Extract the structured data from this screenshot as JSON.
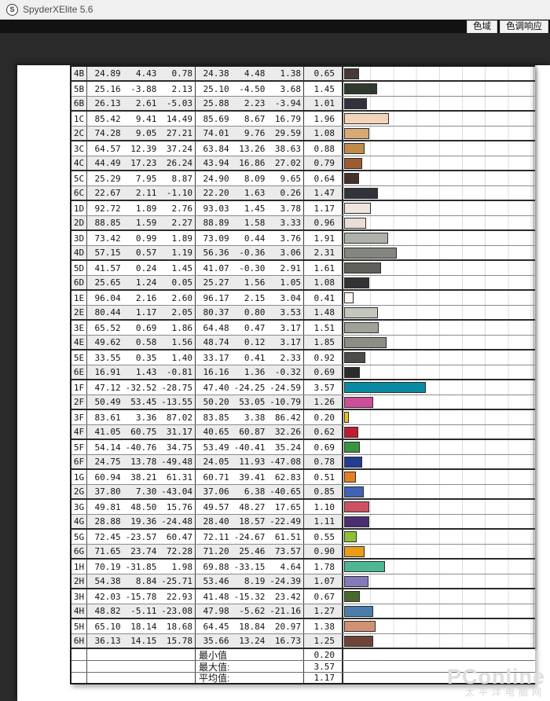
{
  "window": {
    "title": "SpyderXElite 5.6",
    "icon_letter": "S"
  },
  "tabs": [
    {
      "id": "gamut",
      "label": "色域"
    },
    {
      "id": "tone_response",
      "label": "色调响应"
    }
  ],
  "summary": {
    "min_label": "最小值",
    "min_value": "0.20",
    "max_label": "最大值:",
    "max_value": "3.57",
    "avg_label": "平均值:",
    "avg_value": "1.17"
  },
  "watermark": {
    "line1": "PConline",
    "line2": "太平洋电脑网"
  },
  "chart_data": {
    "type": "table",
    "description": "Color accuracy patch table: patch id, target Lab (L,a,b), measured Lab (L,a,b), Delta-E value with horizontal Delta-E bar tinted in patch color",
    "delta_e_axis": {
      "min": 0,
      "max": 8,
      "gridline_step": 1
    },
    "legend_position": "none",
    "rows": [
      {
        "id": "4B",
        "target": [
          "24.89",
          "4.43",
          "0.78"
        ],
        "measured": [
          "24.38",
          "4.48",
          "1.38"
        ],
        "delta_e": "0.65",
        "de": 0.65,
        "color": "#473936",
        "shaded": true
      },
      {
        "id": "5B",
        "target": [
          "25.16",
          "-3.88",
          "2.13"
        ],
        "measured": [
          "25.10",
          "-4.50",
          "3.68"
        ],
        "delta_e": "1.45",
        "de": 1.45,
        "color": "#2e3a2f",
        "shaded": false
      },
      {
        "id": "6B",
        "target": [
          "26.13",
          "2.61",
          "-5.03"
        ],
        "measured": [
          "25.88",
          "2.23",
          "-3.94"
        ],
        "delta_e": "1.01",
        "de": 1.01,
        "color": "#32323e",
        "shaded": true
      },
      {
        "id": "1C",
        "target": [
          "85.42",
          "9.41",
          "14.49"
        ],
        "measured": [
          "85.69",
          "8.67",
          "16.79"
        ],
        "delta_e": "1.96",
        "de": 1.96,
        "color": "#f2d4b6",
        "shaded": false
      },
      {
        "id": "2C",
        "target": [
          "74.28",
          "9.05",
          "27.21"
        ],
        "measured": [
          "74.01",
          "9.76",
          "29.59"
        ],
        "delta_e": "1.08",
        "de": 1.08,
        "color": "#d7a973",
        "shaded": true
      },
      {
        "id": "3C",
        "target": [
          "64.57",
          "12.39",
          "37.24"
        ],
        "measured": [
          "63.84",
          "13.26",
          "38.63"
        ],
        "delta_e": "0.88",
        "de": 0.88,
        "color": "#c08a49",
        "shaded": false
      },
      {
        "id": "4C",
        "target": [
          "44.49",
          "17.23",
          "26.24"
        ],
        "measured": [
          "43.94",
          "16.86",
          "27.02"
        ],
        "delta_e": "0.79",
        "de": 0.79,
        "color": "#9a5c32",
        "shaded": true
      },
      {
        "id": "5C",
        "target": [
          "25.29",
          "7.95",
          "8.87"
        ],
        "measured": [
          "24.90",
          "8.09",
          "9.65"
        ],
        "delta_e": "0.64",
        "de": 0.64,
        "color": "#45302a",
        "shaded": false
      },
      {
        "id": "6C",
        "target": [
          "22.67",
          "2.11",
          "-1.10"
        ],
        "measured": [
          "22.20",
          "1.63",
          "0.26"
        ],
        "delta_e": "1.47",
        "de": 1.47,
        "color": "#32323a",
        "shaded": true
      },
      {
        "id": "1D",
        "target": [
          "92.72",
          "1.89",
          "2.76"
        ],
        "measured": [
          "93.03",
          "1.45",
          "3.78"
        ],
        "delta_e": "1.17",
        "de": 1.17,
        "color": "#f1e6de",
        "shaded": false
      },
      {
        "id": "2D",
        "target": [
          "88.85",
          "1.59",
          "2.27"
        ],
        "measured": [
          "88.89",
          "1.58",
          "3.33"
        ],
        "delta_e": "0.96",
        "de": 0.96,
        "color": "#e8ded6",
        "shaded": true
      },
      {
        "id": "3D",
        "target": [
          "73.42",
          "0.99",
          "1.89"
        ],
        "measured": [
          "73.09",
          "0.44",
          "3.76"
        ],
        "delta_e": "1.91",
        "de": 1.91,
        "color": "#aeb2a8",
        "shaded": false
      },
      {
        "id": "4D",
        "target": [
          "57.15",
          "0.57",
          "1.19"
        ],
        "measured": [
          "56.36",
          "-0.36",
          "3.06"
        ],
        "delta_e": "2.31",
        "de": 2.31,
        "color": "#82867e",
        "shaded": true
      },
      {
        "id": "5D",
        "target": [
          "41.57",
          "0.24",
          "1.45"
        ],
        "measured": [
          "41.07",
          "-0.30",
          "2.91"
        ],
        "delta_e": "1.61",
        "de": 1.61,
        "color": "#60605a",
        "shaded": false
      },
      {
        "id": "6D",
        "target": [
          "25.65",
          "1.24",
          "0.05"
        ],
        "measured": [
          "25.27",
          "1.56",
          "1.05"
        ],
        "delta_e": "1.08",
        "de": 1.08,
        "color": "#333336",
        "shaded": true
      },
      {
        "id": "1E",
        "target": [
          "96.04",
          "2.16",
          "2.60"
        ],
        "measured": [
          "96.17",
          "2.15",
          "3.04"
        ],
        "delta_e": "0.41",
        "de": 0.41,
        "color": "#fbf5ed",
        "shaded": false
      },
      {
        "id": "2E",
        "target": [
          "80.44",
          "1.17",
          "2.05"
        ],
        "measured": [
          "80.37",
          "0.80",
          "3.53"
        ],
        "delta_e": "1.48",
        "de": 1.48,
        "color": "#c4c8bc",
        "shaded": true
      },
      {
        "id": "3E",
        "target": [
          "65.52",
          "0.69",
          "1.86"
        ],
        "measured": [
          "64.48",
          "0.47",
          "3.17"
        ],
        "delta_e": "1.51",
        "de": 1.51,
        "color": "#9fa299",
        "shaded": false
      },
      {
        "id": "4E",
        "target": [
          "49.62",
          "0.58",
          "1.56"
        ],
        "measured": [
          "48.74",
          "0.12",
          "3.17"
        ],
        "delta_e": "1.85",
        "de": 1.85,
        "color": "#8a8e85",
        "shaded": true
      },
      {
        "id": "5E",
        "target": [
          "33.55",
          "0.35",
          "1.40"
        ],
        "measured": [
          "33.17",
          "0.41",
          "2.33"
        ],
        "delta_e": "0.92",
        "de": 0.92,
        "color": "#4b4b47",
        "shaded": false
      },
      {
        "id": "6E",
        "target": [
          "16.91",
          "1.43",
          "-0.81"
        ],
        "measured": [
          "16.16",
          "1.36",
          "-0.32"
        ],
        "delta_e": "0.69",
        "de": 0.69,
        "color": "#2b2b2b",
        "shaded": true
      },
      {
        "id": "1F",
        "target": [
          "47.12",
          "-32.52",
          "-28.75"
        ],
        "measured": [
          "47.40",
          "-24.25",
          "-24.59"
        ],
        "delta_e": "3.57",
        "de": 3.57,
        "color": "#0a89a2",
        "shaded": false
      },
      {
        "id": "2F",
        "target": [
          "50.49",
          "53.45",
          "-13.55"
        ],
        "measured": [
          "50.20",
          "53.05",
          "-10.79"
        ],
        "delta_e": "1.26",
        "de": 1.26,
        "color": "#cc4e99",
        "shaded": true
      },
      {
        "id": "3F",
        "target": [
          "83.61",
          "3.36",
          "87.02"
        ],
        "measured": [
          "83.85",
          "3.38",
          "86.42"
        ],
        "delta_e": "0.20",
        "de": 0.2,
        "color": "#eac51d",
        "shaded": false
      },
      {
        "id": "4F",
        "target": [
          "41.05",
          "60.75",
          "31.17"
        ],
        "measured": [
          "40.65",
          "60.87",
          "32.26"
        ],
        "delta_e": "0.62",
        "de": 0.62,
        "color": "#c01b33",
        "shaded": true
      },
      {
        "id": "5F",
        "target": [
          "54.14",
          "-40.76",
          "34.75"
        ],
        "measured": [
          "53.49",
          "-40.41",
          "35.24"
        ],
        "delta_e": "0.69",
        "de": 0.69,
        "color": "#3b9341",
        "shaded": false
      },
      {
        "id": "6F",
        "target": [
          "24.75",
          "13.78",
          "-49.48"
        ],
        "measured": [
          "24.05",
          "11.93",
          "-47.08"
        ],
        "delta_e": "0.78",
        "de": 0.78,
        "color": "#223c92",
        "shaded": true
      },
      {
        "id": "1G",
        "target": [
          "60.94",
          "38.21",
          "61.31"
        ],
        "measured": [
          "60.71",
          "39.41",
          "62.83"
        ],
        "delta_e": "0.51",
        "de": 0.51,
        "color": "#e77e21",
        "shaded": false
      },
      {
        "id": "2G",
        "target": [
          "37.80",
          "7.30",
          "-43.04"
        ],
        "measured": [
          "37.06",
          "6.38",
          "-40.65"
        ],
        "delta_e": "0.85",
        "de": 0.85,
        "color": "#3f63b5",
        "shaded": true
      },
      {
        "id": "3G",
        "target": [
          "49.81",
          "48.50",
          "15.76"
        ],
        "measured": [
          "49.57",
          "48.27",
          "17.65"
        ],
        "delta_e": "1.10",
        "de": 1.1,
        "color": "#cd5162",
        "shaded": false
      },
      {
        "id": "4G",
        "target": [
          "28.88",
          "19.36",
          "-24.48"
        ],
        "measured": [
          "28.40",
          "18.57",
          "-22.49"
        ],
        "delta_e": "1.11",
        "de": 1.11,
        "color": "#4b2d72",
        "shaded": true
      },
      {
        "id": "5G",
        "target": [
          "72.45",
          "-23.57",
          "60.47"
        ],
        "measured": [
          "72.11",
          "-24.67",
          "61.51"
        ],
        "delta_e": "0.55",
        "de": 0.55,
        "color": "#8fc035",
        "shaded": false
      },
      {
        "id": "6G",
        "target": [
          "71.65",
          "23.74",
          "72.28"
        ],
        "measured": [
          "71.20",
          "25.46",
          "73.57"
        ],
        "delta_e": "0.90",
        "de": 0.9,
        "color": "#eb9d19",
        "shaded": true
      },
      {
        "id": "1H",
        "target": [
          "70.19",
          "-31.85",
          "1.98"
        ],
        "measured": [
          "69.88",
          "-33.15",
          "4.64"
        ],
        "delta_e": "1.78",
        "de": 1.78,
        "color": "#4db795",
        "shaded": false
      },
      {
        "id": "2H",
        "target": [
          "54.38",
          "8.84",
          "-25.71"
        ],
        "measured": [
          "53.46",
          "8.19",
          "-24.39"
        ],
        "delta_e": "1.07",
        "de": 1.07,
        "color": "#837abc",
        "shaded": true
      },
      {
        "id": "3H",
        "target": [
          "42.03",
          "-15.78",
          "22.93"
        ],
        "measured": [
          "41.48",
          "-15.32",
          "23.42"
        ],
        "delta_e": "0.67",
        "de": 0.67,
        "color": "#47682e",
        "shaded": false
      },
      {
        "id": "4H",
        "target": [
          "48.82",
          "-5.11",
          "-23.08"
        ],
        "measured": [
          "47.98",
          "-5.62",
          "-21.16"
        ],
        "delta_e": "1.27",
        "de": 1.27,
        "color": "#4a7dac",
        "shaded": true
      },
      {
        "id": "5H",
        "target": [
          "65.10",
          "18.14",
          "18.68"
        ],
        "measured": [
          "64.45",
          "18.84",
          "20.97"
        ],
        "delta_e": "1.38",
        "de": 1.38,
        "color": "#d09173",
        "shaded": false
      },
      {
        "id": "6H",
        "target": [
          "36.13",
          "14.15",
          "15.78"
        ],
        "measured": [
          "35.66",
          "13.24",
          "16.73"
        ],
        "delta_e": "1.25",
        "de": 1.25,
        "color": "#6e4339",
        "shaded": true
      }
    ]
  }
}
